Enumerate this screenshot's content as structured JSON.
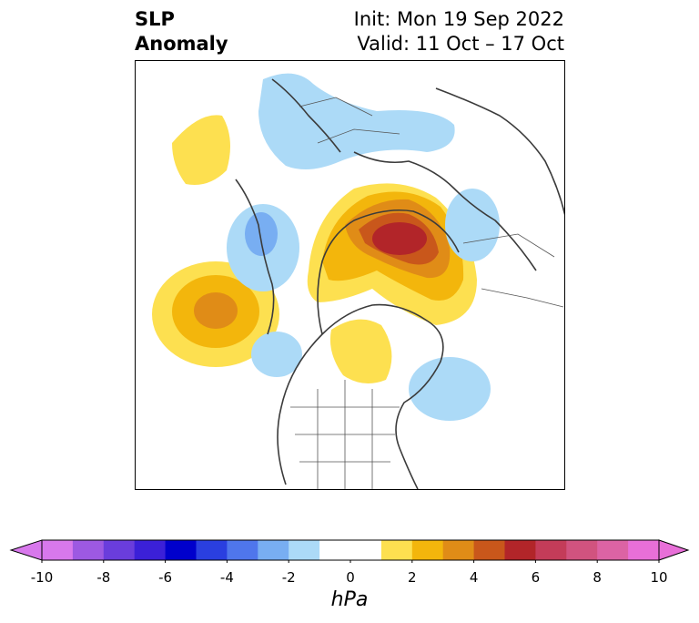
{
  "title": {
    "left_line1": "SLP",
    "left_line2": "Anomaly",
    "right_line1": "Init: Mon 19 Sep 2022",
    "right_line2": "Valid: 11 Oct – 17 Oct"
  },
  "colorbar": {
    "units": "hPa",
    "min": -10,
    "max": 10,
    "extend": "both",
    "tick_values": [
      -10,
      -8,
      -6,
      -4,
      -2,
      0,
      2,
      4,
      6,
      8,
      10
    ],
    "tick_labels": [
      "-10",
      "-8",
      "-6",
      "-4",
      "-2",
      "0",
      "2",
      "4",
      "6",
      "8",
      "10"
    ],
    "colors": [
      "#d878ec",
      "#9d59e2",
      "#6a3ddc",
      "#3b20d8",
      "#0000cc",
      "#2a3fe0",
      "#4f76ec",
      "#78aef2",
      "#acdaf7",
      "#ffffff",
      "#ffffff",
      "#fde050",
      "#f3b60c",
      "#e08c17",
      "#c9571b",
      "#b22529",
      "#c43c59",
      "#d1537f",
      "#dc63a4",
      "#e86fd8"
    ],
    "under_color": "#d878ec",
    "over_color": "#e86fd8"
  },
  "map": {
    "projection": "polar-stereographic",
    "region": "Northern Hemisphere, North America / Arctic",
    "features": [
      {
        "sign": "positive",
        "level": "6+ hPa",
        "location": "Arctic Ocean / Siberian coast"
      },
      {
        "sign": "positive",
        "level": "4 hPa",
        "location": "North Pacific (Gulf of Alaska)"
      },
      {
        "sign": "positive",
        "level": "2 hPa",
        "location": "Hudson Bay"
      },
      {
        "sign": "negative",
        "level": "-2 hPa",
        "location": "Northern Europe"
      },
      {
        "sign": "negative",
        "level": "-4 hPa",
        "location": "Western Russia"
      },
      {
        "sign": "negative",
        "level": "-2 hPa",
        "location": "Western North Atlantic"
      }
    ]
  }
}
